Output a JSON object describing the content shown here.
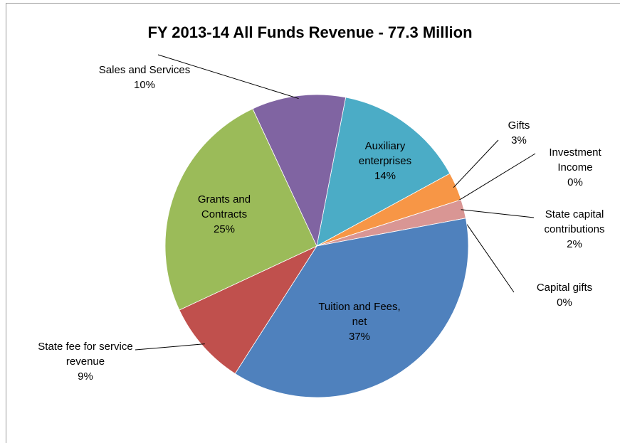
{
  "chart_data": {
    "type": "pie",
    "title": "FY 2013-14 All Funds Revenue - 77.3 Million",
    "categories": [
      "Auxiliary enterprises",
      "Gifts",
      "Investment Income",
      "State capital contributions",
      "Capital gifts",
      "Tuition and Fees, net",
      "State fee for service revenue",
      "Grants and Contracts",
      "Sales and Services"
    ],
    "values": [
      14,
      3,
      0,
      2,
      0,
      37,
      9,
      25,
      10
    ],
    "value_labels": [
      "14%",
      "3%",
      "0%",
      "2%",
      "0%",
      "37%",
      "9%",
      "25%",
      "10%"
    ],
    "colors": [
      "#4bacc6",
      "#f79646",
      "#2c4d75",
      "#d99694",
      "#7f7f7f",
      "#4f81bd",
      "#c0504d",
      "#9bbb59",
      "#8064a2"
    ],
    "start_angle": 11
  }
}
